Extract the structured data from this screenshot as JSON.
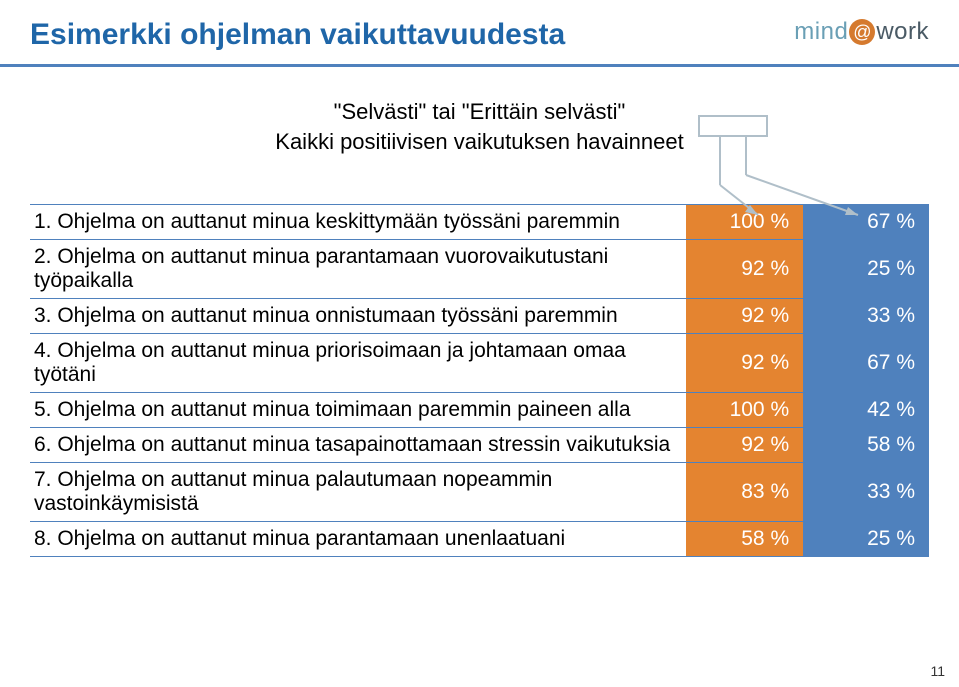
{
  "colors": {
    "title": "#1f66a8",
    "underline": "#4f81bd",
    "row_border": "#4f81bd",
    "col1_bg": "#e48430",
    "col2_bg": "#4f81bd",
    "text": "#000000",
    "callout_stroke": "#b0bfc9"
  },
  "logo": {
    "left": "mind",
    "right": "work"
  },
  "title": "Esimerkki ohjelman vaikuttavuudesta",
  "subtitle_line1": "\"Selvästi\" tai \"Erittäin selvästi\"",
  "subtitle_line2": "Kaikki positiivisen vaikutuksen havainneet",
  "rows": [
    {
      "q": "1. Ohjelma on auttanut minua keskittymään työssäni paremmin",
      "v1": "100 %",
      "v2": "67 %"
    },
    {
      "q": "2. Ohjelma on auttanut minua parantamaan vuorovaikutustani työpaikalla",
      "v1": "92 %",
      "v2": "25 %"
    },
    {
      "q": "3. Ohjelma on auttanut minua onnistumaan työssäni paremmin",
      "v1": "92 %",
      "v2": "33 %"
    },
    {
      "q": "4. Ohjelma on auttanut minua priorisoimaan ja johtamaan omaa työtäni",
      "v1": "92 %",
      "v2": "67 %"
    },
    {
      "q": "5. Ohjelma on auttanut minua toimimaan paremmin paineen alla",
      "v1": "100 %",
      "v2": "42 %"
    },
    {
      "q": "6. Ohjelma on auttanut minua tasapainottamaan stressin vaikutuksia",
      "v1": "92 %",
      "v2": "58 %"
    },
    {
      "q": "7. Ohjelma on auttanut minua palautumaan nopeammin vastoinkäymisistä",
      "v1": "83 %",
      "v2": "33 %"
    },
    {
      "q": "8. Ohjelma on auttanut minua parantamaan unenlaatuani",
      "v1": "58 %",
      "v2": "25 %"
    }
  ],
  "page_number": "11"
}
